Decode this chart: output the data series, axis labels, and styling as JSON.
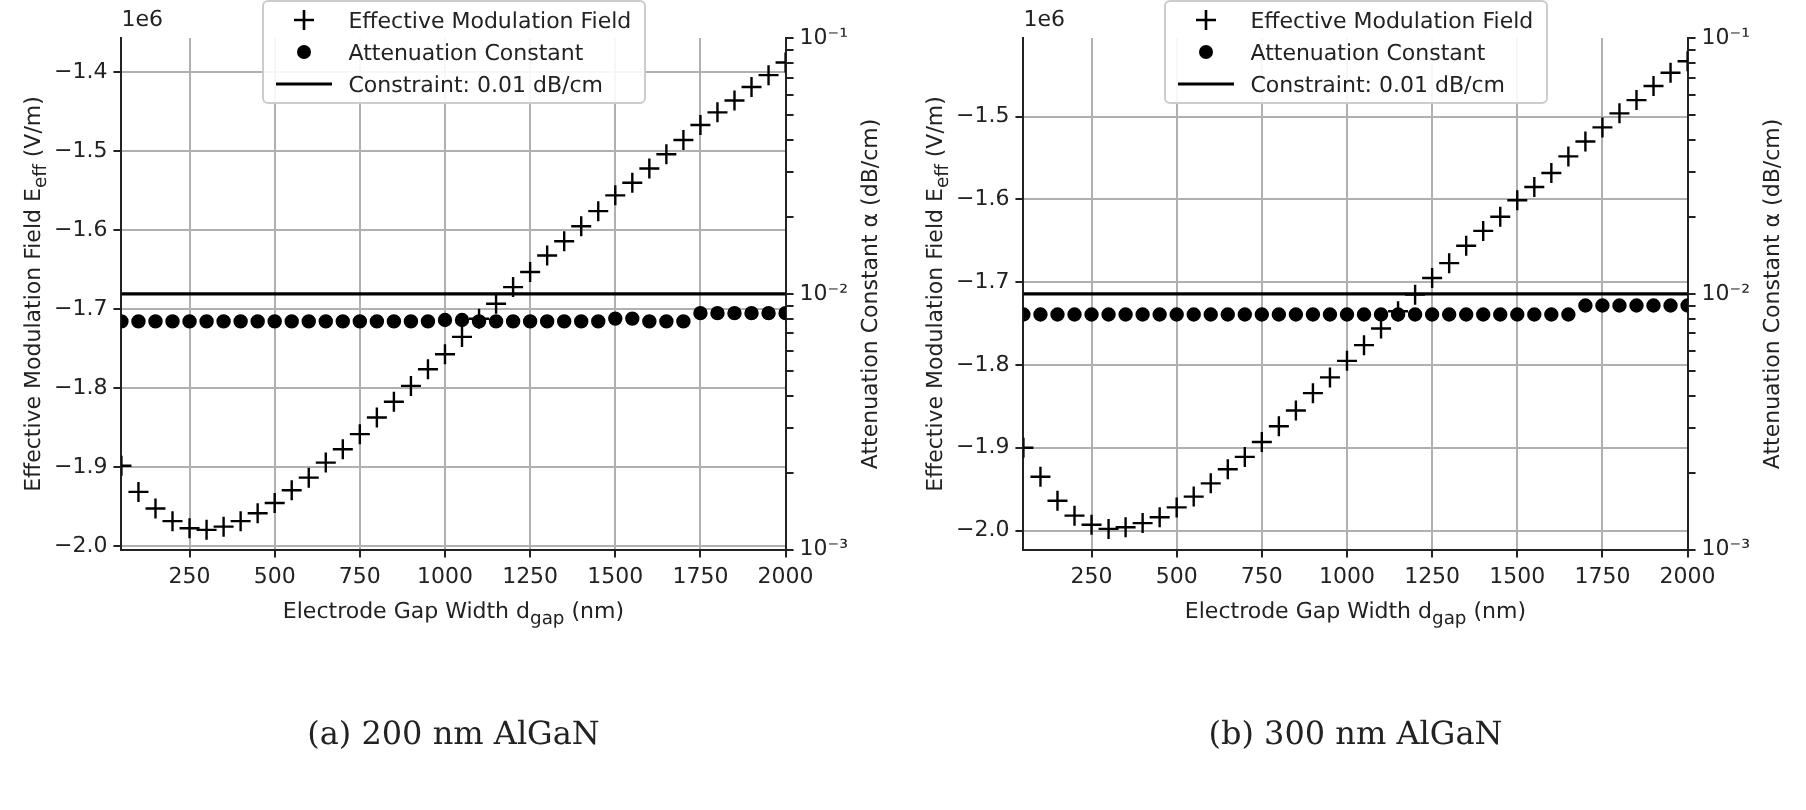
{
  "chart_data": [
    {
      "type": "scatter",
      "title": "(a) 200 nm AlGaN",
      "xlabel": "Electrode Gap Width d$_{gap}$ (nm)",
      "ylabel": "Effective Modulation Field E$_{eff}$ (V/m)",
      "y2label": "Attenuation Constant α (dB/cm)",
      "annotations": [
        "1e6"
      ],
      "x": [
        50,
        100,
        150,
        200,
        250,
        300,
        350,
        400,
        450,
        500,
        550,
        600,
        650,
        700,
        750,
        800,
        850,
        900,
        950,
        1000,
        1050,
        1100,
        1150,
        1200,
        1250,
        1300,
        1350,
        1400,
        1450,
        1500,
        1550,
        1600,
        1650,
        1700,
        1750,
        1800,
        1850,
        1900,
        1950,
        2000
      ],
      "series": [
        {
          "name": "Effective Modulation Field",
          "color": "#000000",
          "marker": "cross",
          "values": [
            -1.898,
            -1.931,
            -1.952,
            -1.968,
            -1.977,
            -1.979,
            -1.975,
            -1.968,
            -1.958,
            -1.945,
            -1.929,
            -1.913,
            -1.894,
            -1.877,
            -1.858,
            -1.837,
            -1.817,
            -1.797,
            -1.776,
            -1.757,
            -1.735,
            -1.712,
            -1.693,
            -1.672,
            -1.653,
            -1.632,
            -1.614,
            -1.595,
            -1.576,
            -1.556,
            -1.54,
            -1.522,
            -1.504,
            -1.486,
            -1.467,
            -1.451,
            -1.436,
            -1.419,
            -1.404,
            -1.388
          ]
        },
        {
          "name": "Attenuation Constant",
          "color": "#000000",
          "marker": "circle",
          "axis": "y2",
          "values": [
            0.0078,
            0.0078,
            0.0078,
            0.0078,
            0.0078,
            0.0078,
            0.0078,
            0.0078,
            0.0078,
            0.0078,
            0.0078,
            0.0078,
            0.0078,
            0.0078,
            0.0078,
            0.0078,
            0.0078,
            0.0078,
            0.0078,
            0.0079,
            0.0079,
            0.0078,
            0.0078,
            0.0078,
            0.0078,
            0.0078,
            0.0078,
            0.0078,
            0.0078,
            0.008,
            0.008,
            0.0078,
            0.0078,
            0.0078,
            0.0084,
            0.0084,
            0.0084,
            0.0084,
            0.0084,
            0.0084
          ]
        }
      ],
      "ref_lines": [
        {
          "axis": "y2",
          "value": 0.01,
          "label": "Constraint: 0.01 dB/cm",
          "color": "#000000"
        }
      ],
      "xlim": [
        50,
        2000
      ],
      "xticks": [
        250,
        500,
        750,
        1000,
        1250,
        1500,
        1750,
        2000
      ],
      "ylim": [
        -2.004,
        -1.357
      ],
      "yticks": [
        {
          "value": -2.0,
          "label": "−2.0"
        },
        {
          "value": -1.9,
          "label": "−1.9"
        },
        {
          "value": -1.8,
          "label": "−1.8"
        },
        {
          "value": -1.7,
          "label": "−1.7"
        },
        {
          "value": -1.6,
          "label": "−1.6"
        },
        {
          "value": -1.5,
          "label": "−1.5"
        },
        {
          "value": -1.4,
          "label": "−1.4"
        }
      ],
      "y2lim": [
        0.001,
        0.1
      ],
      "y2ticks": [
        {
          "value": 0.001,
          "label": "10⁻³"
        },
        {
          "value": 0.002,
          "label": null
        },
        {
          "value": 0.003,
          "label": null
        },
        {
          "value": 0.004,
          "label": null
        },
        {
          "value": 0.005,
          "label": null
        },
        {
          "value": 0.006,
          "label": null
        },
        {
          "value": 0.007,
          "label": null
        },
        {
          "value": 0.008,
          "label": null
        },
        {
          "value": 0.009,
          "label": null
        },
        {
          "value": 0.01,
          "label": "10⁻²"
        },
        {
          "value": 0.02,
          "label": null
        },
        {
          "value": 0.03,
          "label": null
        },
        {
          "value": 0.04,
          "label": null
        },
        {
          "value": 0.05,
          "label": null
        },
        {
          "value": 0.06,
          "label": null
        },
        {
          "value": 0.07,
          "label": null
        },
        {
          "value": 0.08,
          "label": null
        },
        {
          "value": 0.09,
          "label": null
        },
        {
          "value": 0.1,
          "label": "10⁻¹"
        }
      ],
      "log": "y2",
      "grid": true,
      "legend": "top"
    },
    {
      "type": "scatter",
      "title": "(b) 300 nm AlGaN",
      "xlabel": "Electrode Gap Width d$_{gap}$ (nm)",
      "ylabel": "Effective Modulation Field E$_{eff}$ (V/m)",
      "y2label": "Attenuation Constant α (dB/cm)",
      "annotations": [
        "1e6"
      ],
      "x": [
        50,
        100,
        150,
        200,
        250,
        300,
        350,
        400,
        450,
        500,
        550,
        600,
        650,
        700,
        750,
        800,
        850,
        900,
        950,
        1000,
        1050,
        1100,
        1150,
        1200,
        1250,
        1300,
        1350,
        1400,
        1450,
        1500,
        1550,
        1600,
        1650,
        1700,
        1750,
        1800,
        1850,
        1900,
        1950,
        2000
      ],
      "series": [
        {
          "name": "Effective Modulation Field",
          "color": "#000000",
          "marker": "cross",
          "values": [
            -1.9,
            -1.935,
            -1.964,
            -1.982,
            -1.993,
            -1.998,
            -1.996,
            -1.991,
            -1.984,
            -1.972,
            -1.959,
            -1.943,
            -1.926,
            -1.911,
            -1.893,
            -1.874,
            -1.855,
            -1.834,
            -1.815,
            -1.795,
            -1.776,
            -1.756,
            -1.735,
            -1.715,
            -1.695,
            -1.677,
            -1.656,
            -1.638,
            -1.621,
            -1.601,
            -1.585,
            -1.568,
            -1.548,
            -1.53,
            -1.513,
            -1.496,
            -1.48,
            -1.463,
            -1.447,
            -1.433
          ]
        },
        {
          "name": "Attenuation Constant",
          "color": "#000000",
          "marker": "circle",
          "axis": "y2",
          "values": [
            0.0083,
            0.0083,
            0.0083,
            0.0083,
            0.0083,
            0.0083,
            0.0083,
            0.0083,
            0.0083,
            0.0083,
            0.0083,
            0.0083,
            0.0083,
            0.0083,
            0.0083,
            0.0083,
            0.0083,
            0.0083,
            0.0083,
            0.0083,
            0.0083,
            0.0083,
            0.0083,
            0.0083,
            0.0083,
            0.0083,
            0.0083,
            0.0083,
            0.0083,
            0.0083,
            0.0083,
            0.0083,
            0.0083,
            0.009,
            0.009,
            0.009,
            0.009,
            0.009,
            0.009,
            0.009
          ]
        }
      ],
      "ref_lines": [
        {
          "axis": "y2",
          "value": 0.01,
          "label": "Constraint: 0.01 dB/cm",
          "color": "#000000"
        }
      ],
      "xlim": [
        50,
        2000
      ],
      "xticks": [
        250,
        500,
        750,
        1000,
        1250,
        1500,
        1750,
        2000
      ],
      "ylim": [
        -2.023,
        -1.405
      ],
      "yticks": [
        {
          "value": -2.0,
          "label": "−2.0"
        },
        {
          "value": -1.9,
          "label": "−1.9"
        },
        {
          "value": -1.8,
          "label": "−1.8"
        },
        {
          "value": -1.7,
          "label": "−1.7"
        },
        {
          "value": -1.6,
          "label": "−1.6"
        },
        {
          "value": -1.5,
          "label": "−1.5"
        }
      ],
      "y2lim": [
        0.001,
        0.1
      ],
      "y2ticks": [
        {
          "value": 0.001,
          "label": "10⁻³"
        },
        {
          "value": 0.002,
          "label": null
        },
        {
          "value": 0.003,
          "label": null
        },
        {
          "value": 0.004,
          "label": null
        },
        {
          "value": 0.005,
          "label": null
        },
        {
          "value": 0.006,
          "label": null
        },
        {
          "value": 0.007,
          "label": null
        },
        {
          "value": 0.008,
          "label": null
        },
        {
          "value": 0.009,
          "label": null
        },
        {
          "value": 0.01,
          "label": "10⁻²"
        },
        {
          "value": 0.02,
          "label": null
        },
        {
          "value": 0.03,
          "label": null
        },
        {
          "value": 0.04,
          "label": null
        },
        {
          "value": 0.05,
          "label": null
        },
        {
          "value": 0.06,
          "label": null
        },
        {
          "value": 0.07,
          "label": null
        },
        {
          "value": 0.08,
          "label": null
        },
        {
          "value": 0.09,
          "label": null
        },
        {
          "value": 0.1,
          "label": "10⁻¹"
        }
      ],
      "log": "y2",
      "grid": true,
      "legend": "top"
    }
  ]
}
